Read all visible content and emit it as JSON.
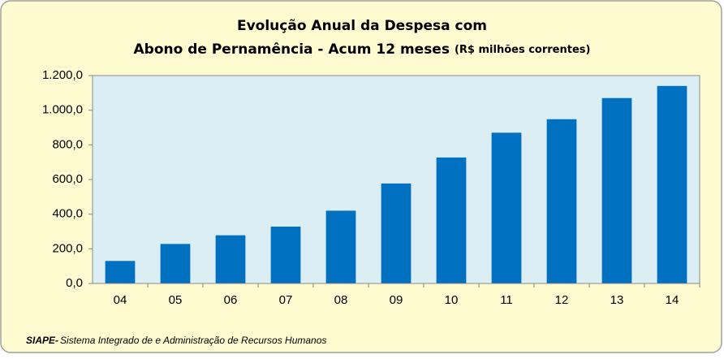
{
  "chart_data": {
    "type": "bar",
    "title": [
      "Evolução Anual da Despesa com",
      "Abono de Pernamência - Acum 12 meses"
    ],
    "subtitle": "(R$ milhões correntes)",
    "categories": [
      "04",
      "05",
      "06",
      "07",
      "08",
      "09",
      "10",
      "11",
      "12",
      "13",
      "14"
    ],
    "values": [
      130,
      228,
      278,
      328,
      420,
      577,
      727,
      870,
      948,
      1070,
      1140
    ],
    "color": "#0070c0",
    "ylim": [
      0,
      1200
    ],
    "yticks": [
      {
        "value": 0,
        "label": "0,0"
      },
      {
        "value": 200,
        "label": "200,0"
      },
      {
        "value": 400,
        "label": "400,0"
      },
      {
        "value": 600,
        "label": "600,0"
      },
      {
        "value": 800,
        "label": "800,0"
      },
      {
        "value": 1000,
        "label": "1.000,0"
      },
      {
        "value": 1200,
        "label": "1.200,0"
      }
    ],
    "grid": false,
    "source_label": "SIAPE-",
    "source": "Sistema Integrado de e Administração de Recursos Humanos"
  }
}
